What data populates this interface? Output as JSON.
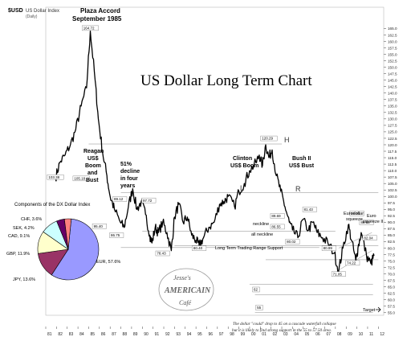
{
  "chart_data": [
    {
      "type": "line",
      "ticker": "$USD",
      "ticker_desc": "US Dollar Index",
      "ticker_sub": "(Daily)",
      "title": "US Dollar Long Term Chart",
      "x_ticks": [
        "81",
        "82",
        "83",
        "84",
        "85",
        "86",
        "87",
        "88",
        "89",
        "90",
        "91",
        "92",
        "93",
        "94",
        "95",
        "96",
        "97",
        "98",
        "99",
        "00",
        "01",
        "02",
        "03",
        "04",
        "05",
        "06",
        "07",
        "08",
        "09",
        "10",
        "11",
        "12"
      ],
      "y_ticks": [
        55.0,
        57.5,
        60.0,
        62.5,
        65.0,
        67.5,
        70.0,
        72.5,
        75.0,
        77.5,
        80.0,
        82.5,
        85.0,
        87.5,
        90.0,
        92.5,
        95.0,
        97.5,
        100.0,
        102.5,
        105.0,
        107.5,
        110.0,
        112.5,
        115.0,
        117.5,
        120.0,
        122.5,
        125.0,
        127.5,
        130.0,
        132.5,
        135.0,
        137.5,
        140.0,
        142.5,
        145.0,
        147.5,
        150.0,
        152.5,
        155.0,
        157.5,
        160.0,
        162.5,
        165.0
      ],
      "ylim": [
        54,
        167
      ],
      "xlim": [
        1981,
        2012.5
      ],
      "x": [
        1981.9,
        1982.3,
        1982.8,
        1983.3,
        1983.8,
        1984.3,
        1984.8,
        1985.15,
        1985.6,
        1985.9,
        1986.3,
        1986.7,
        1987.0,
        1987.4,
        1987.95,
        1988.3,
        1988.7,
        1989.1,
        1989.5,
        1989.9,
        1990.3,
        1990.7,
        1990.9,
        1991.2,
        1991.5,
        1991.9,
        1992.3,
        1992.7,
        1993.0,
        1993.4,
        1993.8,
        1994.2,
        1994.6,
        1995.0,
        1995.3,
        1995.7,
        1996.2,
        1996.7,
        1997.2,
        1997.6,
        1998.0,
        1998.6,
        1999.0,
        1999.5,
        2000.0,
        2000.6,
        2000.9,
        2001.2,
        2001.5,
        2001.8,
        2002.1,
        2002.5,
        2002.9,
        2003.3,
        2003.7,
        2004.0,
        2004.5,
        2004.95,
        2005.5,
        2005.9,
        2006.3,
        2006.8,
        2007.3,
        2007.9,
        2008.3,
        2008.7,
        2009.2,
        2009.5,
        2009.9,
        2010.1,
        2010.4,
        2010.9,
        2011.3,
        2011.6
      ],
      "y": [
        107,
        113,
        116,
        120,
        126,
        135,
        142,
        164,
        145,
        130,
        117,
        108,
        100,
        95,
        90,
        88,
        96,
        103,
        95,
        98,
        93,
        85,
        82,
        88,
        86,
        90,
        86,
        79,
        92,
        97,
        90,
        92,
        85,
        83,
        81,
        84,
        88,
        90,
        97,
        98,
        100,
        96,
        102,
        105,
        110,
        113,
        116,
        112,
        120,
        115,
        118,
        108,
        102,
        96,
        90,
        87,
        84,
        91,
        87,
        90,
        86,
        84,
        82,
        78,
        71,
        80,
        89,
        83,
        75,
        80,
        86,
        77,
        74,
        77
      ],
      "annotations": {
        "plaza_line1": "Plaza Accord",
        "plaza_line2": "September 1985",
        "reagan": [
          "Reagan",
          "US$",
          "Boom",
          "and",
          "Bust"
        ],
        "decline": [
          "51%",
          "decline",
          "in four",
          "years"
        ],
        "clinton": [
          "Clinton",
          "US$ Boom"
        ],
        "bush": [
          "Bush II",
          "US$ Bust"
        ],
        "H": "H",
        "L": "L",
        "R": "R",
        "neckline": "neckline",
        "all_neckline": "all neckline",
        "support": "Long Term Trading Range Support",
        "eurodollar": [
          "Eurodollar",
          "squeeze"
        ],
        "euro": [
          "Euro",
          "squeeze II"
        ],
        "target": "Target",
        "footnote_1": "The dollar \"could\" drop to 45 on a cascade waterfall collapse",
        "footnote_2": "but it is likely to find strong support in the 55 to 57.50 area.",
        "price_labels": [
          "164.72",
          "103.38",
          "105.18",
          "95.40",
          "89.12",
          "97.72",
          "86.75",
          "78.43",
          "80.40",
          "120.29",
          "89.69",
          "86.55",
          "80.02",
          "80.99",
          "71.05",
          "81.43",
          "89.01",
          "74.22",
          "88.51",
          "82.04",
          "62",
          "55"
        ]
      },
      "watermark": [
        "Jesse's",
        "AMERICAIN",
        "Café"
      ]
    },
    {
      "type": "pie",
      "title": "Components of the DX Dollar Index",
      "labels": [
        "EUR, 57.6%",
        "JPY, 13.6%",
        "GBP, 11.9%",
        "CAD, 9.1%",
        "SEK, 4.2%",
        "CHF, 3.6%"
      ],
      "values": [
        57.6,
        13.6,
        11.9,
        9.1,
        4.2,
        3.6
      ],
      "colors": [
        "#9999ff",
        "#993366",
        "#ffffcc",
        "#ccffff",
        "#660066",
        "#ff8080"
      ]
    }
  ]
}
